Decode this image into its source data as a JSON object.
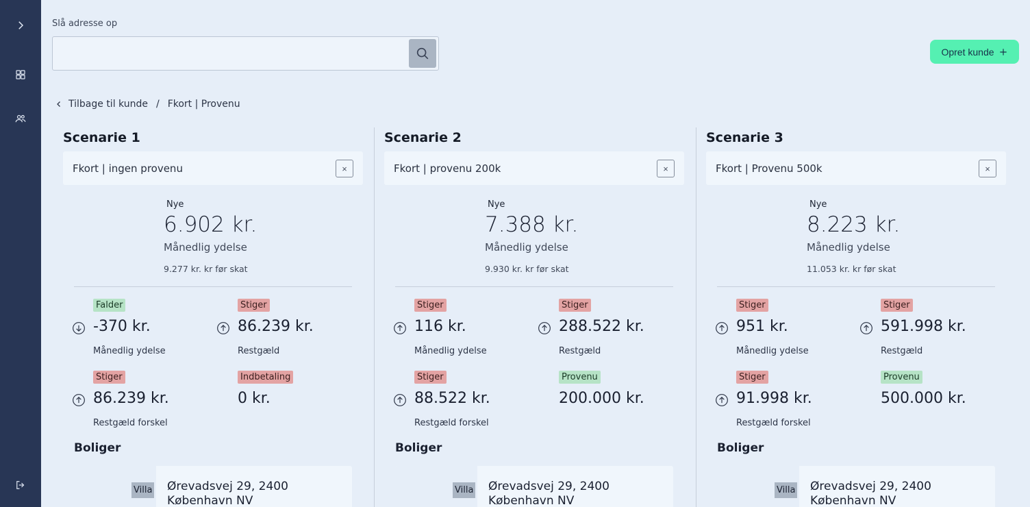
{
  "search": {
    "label": "Slå adresse op",
    "value": "",
    "placeholder": ""
  },
  "create_button": {
    "label": "Opret kunde",
    "icon": "plus-icon"
  },
  "breadcrumb": {
    "back_label": "Tilbage til kunde",
    "separator": "/",
    "current": "Fkort | Provenu"
  },
  "colors": {
    "sidebar": "#283655",
    "accent": "#55f0b2",
    "badge_up": "#e3a3a3",
    "badge_down": "#b6e3c6"
  },
  "scenarios": [
    {
      "title": "Scenarie 1",
      "name": "Fkort | ingen provenu",
      "close_label": "×",
      "nye_label": "Nye",
      "monthly": "6.902 kr.",
      "monthly_label": "Månedlig ydelse",
      "pretax": "9.277 kr. kr før skat",
      "metrics": [
        {
          "badge": "Falder",
          "value": "-370 kr.",
          "label": "Månedlig ydelse"
        },
        {
          "badge": "Stiger",
          "value": "86.239 kr.",
          "label": "Restgæld"
        },
        {
          "badge": "Stiger",
          "value": "86.239 kr.",
          "label": "Restgæld forskel"
        },
        {
          "badge": "Indbetaling",
          "value": "0 kr.",
          "label": ""
        }
      ],
      "boliger_label": "Boliger",
      "property": {
        "type": "Villa",
        "address_line1": "Ørevadsvej 29, 2400",
        "address_line2": "København NV"
      }
    },
    {
      "title": "Scenarie 2",
      "name": "Fkort | provenu 200k",
      "close_label": "×",
      "nye_label": "Nye",
      "monthly": "7.388 kr.",
      "monthly_label": "Månedlig ydelse",
      "pretax": "9.930 kr. kr før skat",
      "metrics": [
        {
          "badge": "Stiger",
          "value": "116 kr.",
          "label": "Månedlig ydelse"
        },
        {
          "badge": "Stiger",
          "value": "288.522 kr.",
          "label": "Restgæld"
        },
        {
          "badge": "Stiger",
          "value": "88.522 kr.",
          "label": "Restgæld forskel"
        },
        {
          "badge": "Provenu",
          "value": "200.000 kr.",
          "label": ""
        }
      ],
      "boliger_label": "Boliger",
      "property": {
        "type": "Villa",
        "address_line1": "Ørevadsvej 29, 2400",
        "address_line2": "København NV"
      }
    },
    {
      "title": "Scenarie 3",
      "name": "Fkort | Provenu 500k",
      "close_label": "×",
      "nye_label": "Nye",
      "monthly": "8.223 kr.",
      "monthly_label": "Månedlig ydelse",
      "pretax": "11.053 kr. kr før skat",
      "metrics": [
        {
          "badge": "Stiger",
          "value": "951 kr.",
          "label": "Månedlig ydelse"
        },
        {
          "badge": "Stiger",
          "value": "591.998 kr.",
          "label": "Restgæld"
        },
        {
          "badge": "Stiger",
          "value": "91.998 kr.",
          "label": "Restgæld forskel"
        },
        {
          "badge": "Provenu",
          "value": "500.000 kr.",
          "label": ""
        }
      ],
      "boliger_label": "Boliger",
      "property": {
        "type": "Villa",
        "address_line1": "Ørevadsvej 29, 2400",
        "address_line2": "København NV"
      }
    }
  ]
}
